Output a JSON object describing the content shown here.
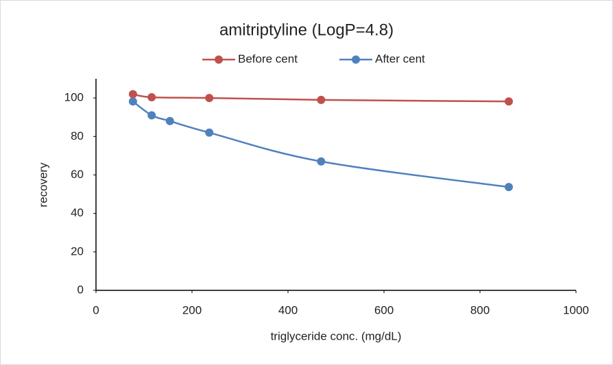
{
  "chart_data": {
    "type": "line",
    "title": "amitriptyline (LogP=4.8)",
    "x_label": "triglyceride conc. (mg/dL)",
    "y_label": "recovery",
    "xlim": [
      0,
      1000
    ],
    "xticks": [
      0,
      200,
      400,
      600,
      800,
      1000
    ],
    "ylim": [
      0,
      110
    ],
    "yticks": [
      0,
      20,
      40,
      60,
      80,
      100
    ],
    "legend": "top",
    "smooth": true,
    "series": [
      {
        "name": "Before cent",
        "color": "#c0504d",
        "x": [
          77,
          116,
          236,
          469,
          860
        ],
        "values": [
          102,
          100.4,
          100,
          99,
          98.2
        ]
      },
      {
        "name": "After cent",
        "color": "#4f81bd",
        "x": [
          77,
          116,
          154,
          236,
          469,
          860
        ],
        "values": [
          98.2,
          91,
          88,
          82,
          67,
          53.7
        ]
      }
    ]
  }
}
